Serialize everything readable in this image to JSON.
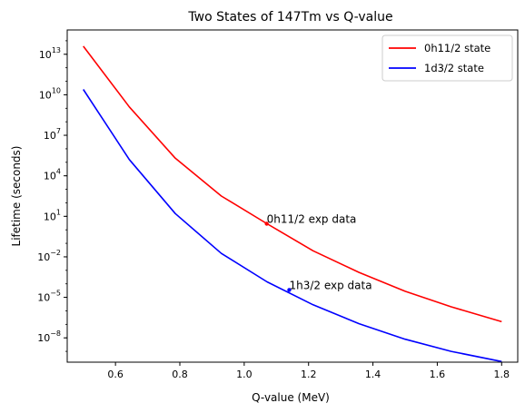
{
  "chart_data": {
    "type": "line",
    "title": "Two States of 147Tm vs Q-value",
    "xlabel": "Q-value (MeV)",
    "ylabel": "Lifetime (seconds)",
    "yscale": "log",
    "xlim": [
      0.45,
      1.85
    ],
    "ylim_log10": [
      -9.8,
      14.8
    ],
    "grid": false,
    "legend_position": "upper right",
    "xticks": [
      {
        "value": 0.6,
        "label": "0.6"
      },
      {
        "value": 0.8,
        "label": "0.8"
      },
      {
        "value": 1.0,
        "label": "1.0"
      },
      {
        "value": 1.2,
        "label": "1.2"
      },
      {
        "value": 1.4,
        "label": "1.4"
      },
      {
        "value": 1.6,
        "label": "1.6"
      },
      {
        "value": 1.8,
        "label": "1.8"
      }
    ],
    "yticks": [
      {
        "exp": 13,
        "base": "10",
        "power": "13"
      },
      {
        "exp": 10,
        "base": "10",
        "power": "10"
      },
      {
        "exp": 7,
        "base": "10",
        "power": "7"
      },
      {
        "exp": 4,
        "base": "10",
        "power": "4"
      },
      {
        "exp": 1,
        "base": "10",
        "power": "1"
      },
      {
        "exp": -2,
        "base": "10",
        "power": "−2"
      },
      {
        "exp": -5,
        "base": "10",
        "power": "−5"
      },
      {
        "exp": -8,
        "base": "10",
        "power": "−8"
      }
    ],
    "series": [
      {
        "name": "0h11/2 state",
        "color": "#ff0000",
        "x": [
          0.5,
          0.643,
          0.786,
          0.929,
          1.071,
          1.214,
          1.357,
          1.5,
          1.643,
          1.8
        ],
        "log10_y": [
          13.6,
          9.1,
          5.3,
          2.5,
          0.45,
          -1.55,
          -3.15,
          -4.55,
          -5.7,
          -6.8
        ]
      },
      {
        "name": "1d3/2 state",
        "color": "#0000ff",
        "x": [
          0.5,
          0.643,
          0.786,
          0.929,
          1.071,
          1.214,
          1.357,
          1.5,
          1.643,
          1.8
        ],
        "log10_y": [
          10.4,
          5.2,
          1.2,
          -1.75,
          -3.85,
          -5.55,
          -6.95,
          -8.1,
          -9.0,
          -9.75
        ]
      }
    ],
    "annotations": [
      {
        "text": "0h11/2 exp data",
        "x": 1.07,
        "log10_y": 0.45,
        "color": "#ff0000"
      },
      {
        "text": "1h3/2 exp data",
        "x": 1.14,
        "log10_y": -4.45,
        "color": "#0000ff"
      }
    ]
  }
}
